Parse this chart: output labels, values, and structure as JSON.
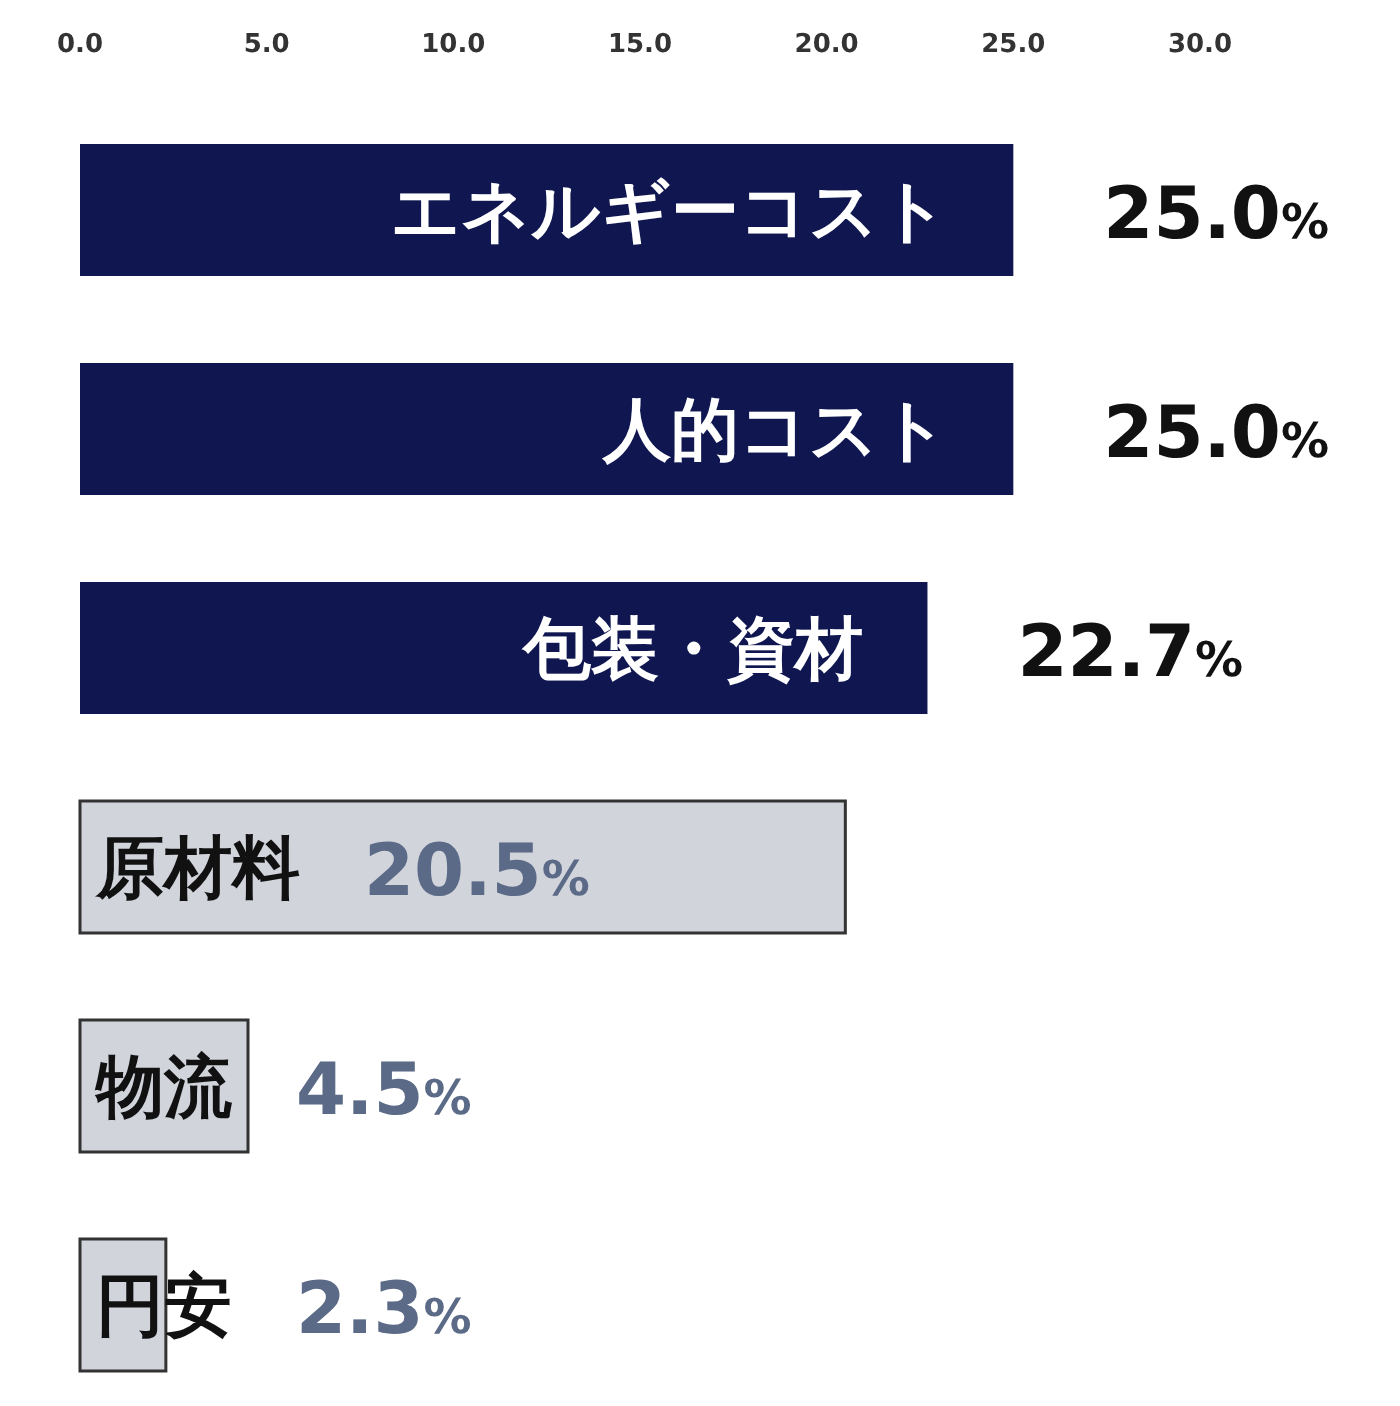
{
  "chart_data": {
    "type": "bar",
    "orientation": "horizontal",
    "categories": [
      "エネルギーコスト",
      "人的コスト",
      "包装・資材",
      "原材料",
      "物流",
      "円安"
    ],
    "values": [
      25.0,
      25.0,
      22.7,
      20.5,
      4.5,
      2.3
    ],
    "colors": [
      "#0f1650",
      "#0f1650",
      "#0f1650",
      "#d2d4dc",
      "#d2d4dc",
      "#d2d4dc"
    ],
    "value_labels": [
      "25.0%",
      "25.0%",
      "22.7%",
      "20.5%",
      "4.5%",
      "2.3%"
    ],
    "xlim": [
      0,
      30
    ],
    "xticks": [
      {
        "value": 0,
        "label": "0.0"
      },
      {
        "value": 5,
        "label": "5.0"
      },
      {
        "value": 10,
        "label": "10.0"
      },
      {
        "value": 15,
        "label": "15.0"
      },
      {
        "value": 20,
        "label": "20.0"
      },
      {
        "value": 25,
        "label": "25.0"
      },
      {
        "value": 30,
        "label": "30.0"
      }
    ]
  }
}
